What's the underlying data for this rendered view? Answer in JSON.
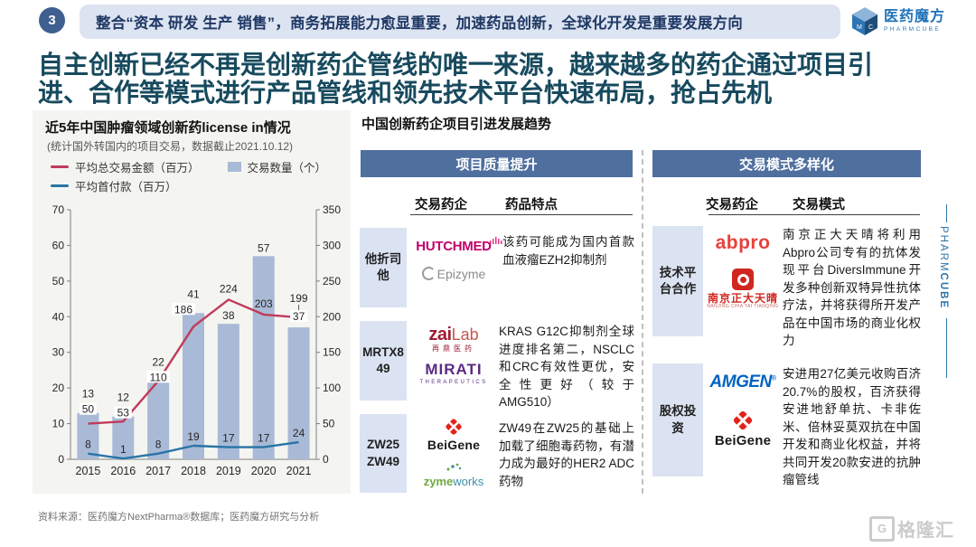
{
  "header": {
    "badge": "3",
    "title": "整合“资本 研发 生产 销售”，商务拓展能力愈显重要，加速药品创新，全球化开发是重要发展方向",
    "logo": {
      "name": "医药魔方",
      "sub": "PHARMCUBE"
    }
  },
  "headline": {
    "text": "自主创新已经不再是创新药企管线的唯一来源，越来越多的药企通过项目引进、合作等模式进行产品管线和领先技术平台快速布局，抢占先机"
  },
  "chart_section": {
    "title": "近5年中国肿瘤领域创新药license in情况",
    "subtitle": "(统计国外转国内的项目交易，数据截止2021.10.12)",
    "legend": [
      {
        "label": "平均总交易金额（百万）",
        "type": "line",
        "color": "#C13A5A"
      },
      {
        "label": "交易数量（个）",
        "type": "bar",
        "color": "#A9BAD6"
      },
      {
        "label": "平均首付款（百万）",
        "type": "line",
        "color": "#2874A6"
      }
    ]
  },
  "chart_data": {
    "type": "bar",
    "subtype": "bar+line dual-axis combo",
    "categories": [
      "2015",
      "2016",
      "2017",
      "2018",
      "2019",
      "2020",
      "2021"
    ],
    "series": [
      {
        "name": "交易数量（个）",
        "type": "bar",
        "axis": "left",
        "color": "#A9BAD6",
        "values": [
          13,
          12,
          22,
          41,
          38,
          57,
          37
        ]
      },
      {
        "name": "平均总交易金额（百万）",
        "type": "line",
        "axis": "right",
        "color": "#C13A5A",
        "values": [
          50,
          53,
          110,
          186,
          224,
          203,
          199
        ]
      },
      {
        "name": "平均首付款（百万）",
        "type": "line",
        "axis": "right",
        "color": "#2874A6",
        "values": [
          8,
          1,
          8,
          19,
          17,
          17,
          24
        ]
      }
    ],
    "left_axis": {
      "min": 0,
      "max": 70,
      "step": 10
    },
    "right_axis": {
      "min": 0,
      "max": 350,
      "step": 50
    },
    "grid": false,
    "legend_position": "top-left"
  },
  "trend": {
    "title": "中国创新药企项目引进发展趋势",
    "panels": [
      {
        "header": "项目质量提升",
        "col1": "交易药企",
        "col2": "药品特点",
        "rows": [
          {
            "label": "他折司他",
            "logo_ids": [
              "hutchmed",
              "epizyme"
            ],
            "desc": "该药可能成为国内首款血液瘤EZH2抑制剂"
          },
          {
            "label": "MRTX849",
            "logo_ids": [
              "zailab",
              "mirati"
            ],
            "desc": "KRAS G12C抑制剂全球进度排名第二，NSCLC和CRC有效性更优，安全性更好（较于 AMG510）"
          },
          {
            "label": "ZW25\nZW49",
            "logo_ids": [
              "beigene",
              "zymeworks"
            ],
            "desc": "ZW49在ZW25的基础上加载了细胞毒药物，有潜力成为最好的HER2 ADC药物"
          }
        ]
      },
      {
        "header": "交易模式多样化",
        "col1": "交易药企",
        "col2": "交易模式",
        "rows": [
          {
            "label": "技术平台合作",
            "logo_ids": [
              "abpro",
              "cttq"
            ],
            "desc": "南京正大天晴将利用Abpro公司专有的抗体发现平台DiversImmune开发多种创新双特异性抗体疗法，并将获得所开发产品在中国市场的商业化权力"
          },
          {
            "label": "股权投资",
            "logo_ids": [
              "amgen",
              "beigene"
            ],
            "desc": "安进用27亿美元收购百济20.7%的股权，百济获得安进地舒单抗、卡非佐米、倍林妥莫双抗在中国开发和商业化权益，并将共同开发20款安进的抗肿瘤管线"
          }
        ]
      }
    ]
  },
  "logos": {
    "hutchmed": {
      "text": "HUTCHMED"
    },
    "epizyme": {
      "text": "Epizyme"
    },
    "zailab": {
      "zai": "zai",
      "lab": "Lab",
      "cn": "再鼎医药"
    },
    "mirati": {
      "text": "MIRATI",
      "sub": "THERAPEUTICS"
    },
    "beigene": {
      "text": "BeiGene"
    },
    "zymeworks": {
      "zyme": "zyme",
      "works": "works"
    },
    "abpro": {
      "text": "abpro"
    },
    "cttq": {
      "cn": "南京正大天晴",
      "en": "NANJING CHIA TAI TIANQING"
    },
    "amgen": {
      "text": "AMGEN",
      "reg": "®"
    }
  },
  "footer": {
    "source": "资料来源：医药魔方NextPharma®数据库；医药魔方研究与分析"
  },
  "side_brand": {
    "top": "PHARM",
    "bottom": "CUBE"
  },
  "watermark": {
    "g": "G",
    "text": "格隆汇"
  },
  "colors": {
    "header_bar_bg": "#DCE3F1",
    "header_text": "#1F3864",
    "badge_bg": "#3E5F8F",
    "headline_text": "#174A5E",
    "panel_header_bg": "#4F6F9F",
    "row_label_bg": "#DBE3F2",
    "bar_fill": "#A9BAD6",
    "line_red": "#C13A5A",
    "line_blue": "#2874A6",
    "brand_blue": "#2173B9",
    "chart_card_bg": "#F4F4F1"
  }
}
